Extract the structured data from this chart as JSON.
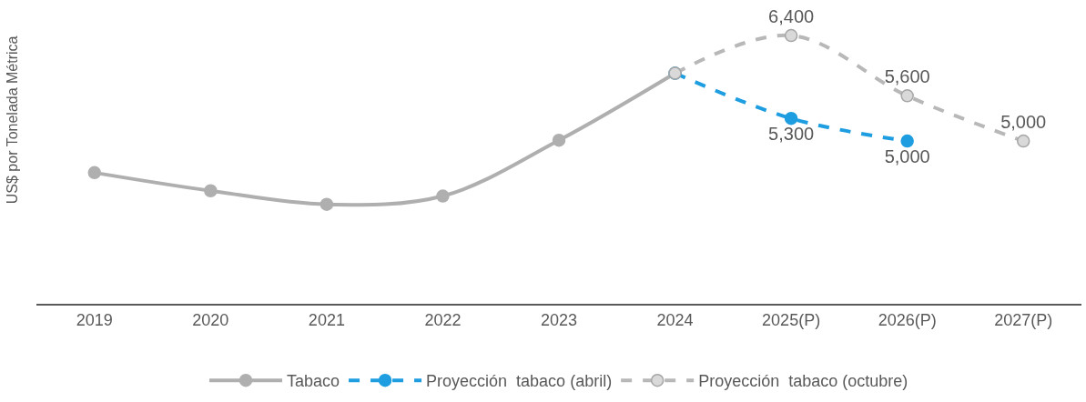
{
  "chart_data": {
    "type": "line",
    "ylabel": "US$ por Tonelada Métrica",
    "categories": [
      "2019",
      "2020",
      "2021",
      "2022",
      "2023",
      "2024",
      "2025(P)",
      "2026(P)",
      "2027(P)"
    ],
    "legend": "bottom",
    "marker": "circle",
    "series": [
      {
        "name": "Tabaco",
        "color": "#afafaf",
        "line_style": "solid",
        "values": [
          4580,
          4340,
          4160,
          4270,
          5010,
          5900,
          null,
          null,
          null
        ]
      },
      {
        "name": "Proyección  tabaco (abril)",
        "color": "#1e9ee0",
        "line_style": "dashed",
        "values": [
          null,
          null,
          null,
          null,
          null,
          5900,
          5300,
          5000,
          null
        ],
        "value_labels": [
          null,
          null,
          null,
          null,
          null,
          null,
          "5,300",
          "5,000",
          null
        ]
      },
      {
        "name": "Proyección  tabaco (octubre)",
        "color": "#b8b8b8",
        "line_style": "dashed",
        "values": [
          null,
          null,
          null,
          null,
          null,
          5900,
          6400,
          5600,
          5000
        ],
        "value_labels": [
          null,
          null,
          null,
          null,
          null,
          null,
          "6,400",
          "5,600",
          "5,000"
        ]
      }
    ]
  }
}
